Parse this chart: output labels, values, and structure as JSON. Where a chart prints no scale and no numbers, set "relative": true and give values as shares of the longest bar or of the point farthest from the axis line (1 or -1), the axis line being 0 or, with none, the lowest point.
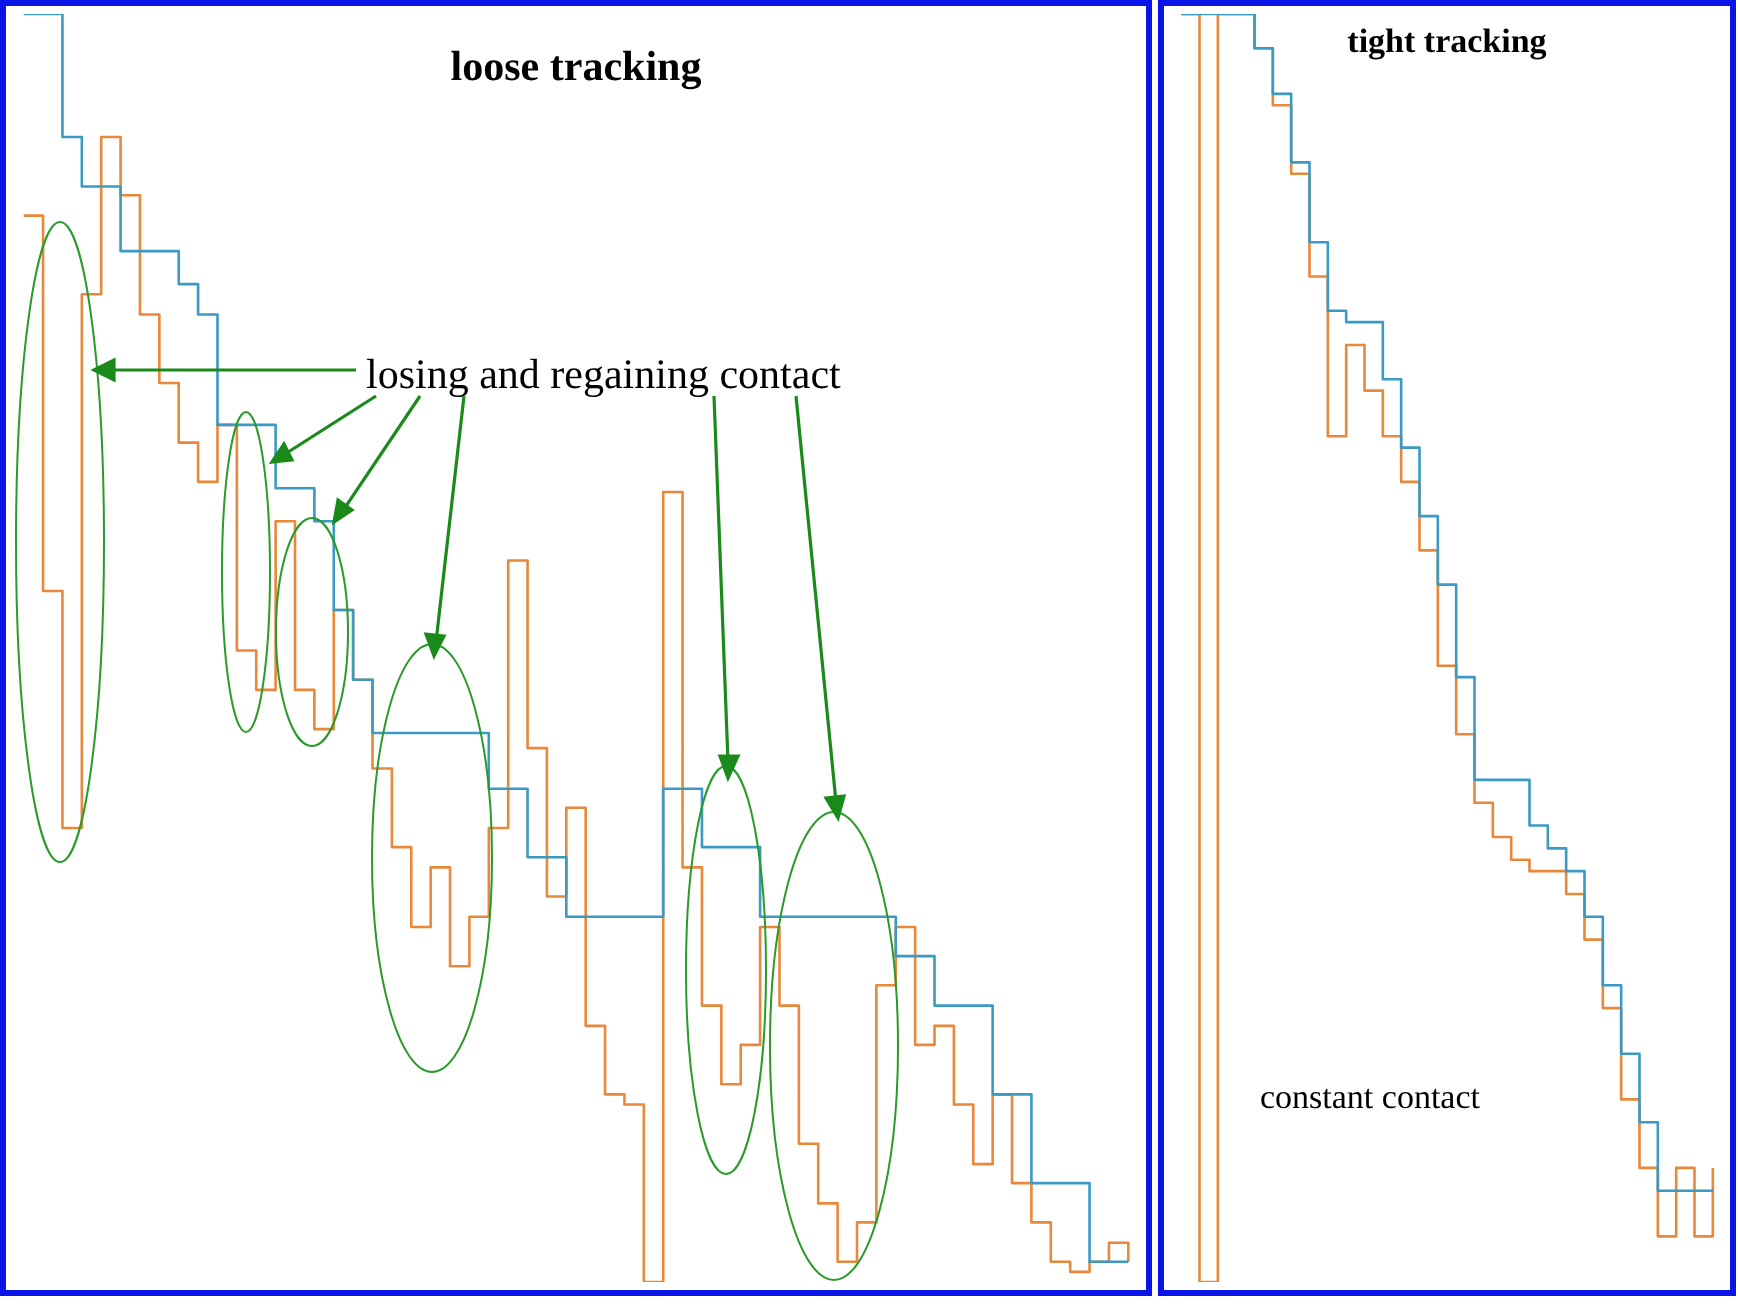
{
  "chart_data": [
    {
      "type": "step",
      "title": "loose tracking",
      "relative": true,
      "annotations": [
        "losing and regaining contact"
      ],
      "categories": [
        null,
        null,
        null,
        null,
        null,
        null,
        null,
        null,
        null,
        null,
        null,
        null,
        null,
        null,
        null,
        null,
        null,
        null,
        null,
        null,
        null,
        null,
        null,
        null,
        null,
        null,
        null,
        null,
        null,
        null,
        null,
        null,
        null,
        null,
        null,
        null,
        null,
        null,
        null,
        null,
        null,
        null,
        null,
        null,
        null,
        null,
        null,
        null,
        null,
        null,
        null,
        null,
        null,
        null,
        null,
        null,
        null,
        null
      ],
      "series": [
        {
          "color": "#e8883a",
          "values": [
            0.841,
            0.545,
            0.358,
            0.779,
            0.903,
            0.857,
            0.763,
            0.709,
            0.662,
            0.631,
            0.676,
            0.498,
            0.467,
            0.6,
            0.467,
            0.436,
            0.53,
            0.475,
            0.405,
            0.343,
            0.28,
            0.327,
            0.249,
            0.288,
            0.358,
            0.569,
            0.421,
            0.304,
            0.374,
            0.202,
            0.148,
            0.14,
            0,
            0.623,
            0.327,
            0.218,
            0.156,
            0.187,
            0.28,
            0.218,
            0.109,
            0.062,
            0.016,
            0.047,
            0.234,
            0.28,
            0.187,
            0.202,
            0.14,
            0.093,
            0.148,
            0.078,
            0.047,
            0.016,
            0.008,
            0.016,
            0.031,
            0.016
          ]
        },
        {
          "color": "#3a9ac4",
          "values": [
            1,
            1,
            0.903,
            0.864,
            0.864,
            0.813,
            0.813,
            0.813,
            0.787,
            0.763,
            0.676,
            0.676,
            0.676,
            0.626,
            0.626,
            0.6,
            0.53,
            0.475,
            0.433,
            0.433,
            0.433,
            0.433,
            0.433,
            0.433,
            0.389,
            0.389,
            0.335,
            0.335,
            0.288,
            0.288,
            0.288,
            0.288,
            0.288,
            0.389,
            0.389,
            0.343,
            0.343,
            0.343,
            0.288,
            0.288,
            0.288,
            0.288,
            0.288,
            0.288,
            0.288,
            0.257,
            0.257,
            0.218,
            0.218,
            0.218,
            0.148,
            0.148,
            0.078,
            0.078,
            0.078,
            0.016,
            0.016,
            0.016
          ]
        }
      ]
    },
    {
      "type": "step",
      "title": "tight tracking",
      "relative": true,
      "annotations": [
        "constant contact"
      ],
      "categories": [
        null,
        null,
        null,
        null,
        null,
        null,
        null,
        null,
        null,
        null,
        null,
        null,
        null,
        null,
        null,
        null,
        null,
        null,
        null,
        null,
        null,
        null,
        null,
        null,
        null,
        null,
        null,
        null,
        null,
        null
      ],
      "series": [
        {
          "color": "#e8883a",
          "values": [
            1,
            0,
            1,
            1,
            0.973,
            0.928,
            0.874,
            0.793,
            0.667,
            0.739,
            0.703,
            0.667,
            0.631,
            0.577,
            0.486,
            0.432,
            0.378,
            0.351,
            0.333,
            0.324,
            0.324,
            0.306,
            0.27,
            0.216,
            0.144,
            0.09,
            0.036,
            0.09,
            0.036,
            0.09
          ]
        },
        {
          "color": "#3a9ac4",
          "values": [
            1,
            1,
            1,
            1,
            0.973,
            0.937,
            0.883,
            0.82,
            0.766,
            0.757,
            0.757,
            0.712,
            0.658,
            0.604,
            0.55,
            0.477,
            0.396,
            0.396,
            0.396,
            0.36,
            0.342,
            0.324,
            0.288,
            0.234,
            0.18,
            0.126,
            0.072,
            0.072,
            0.072,
            0.072
          ]
        }
      ]
    }
  ]
}
